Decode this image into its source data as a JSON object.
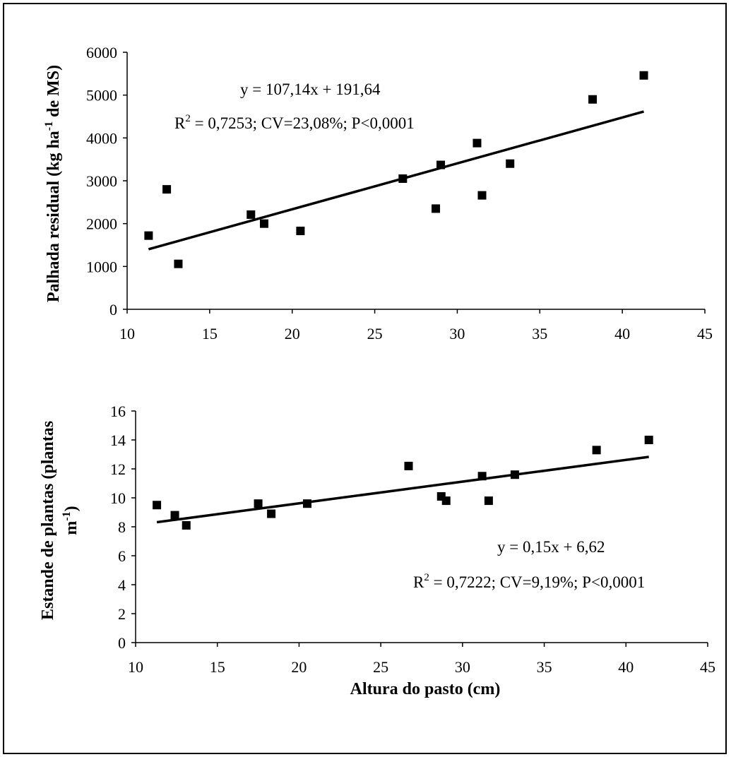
{
  "chart_data": [
    {
      "type": "scatter",
      "ylabel": "Palhada residual (kg ha-1 de MS)",
      "ylabel_parts": {
        "pre": "Palhada residual (kg ha",
        "sup": "-1",
        "post": " de MS)"
      },
      "xlim": [
        10,
        45
      ],
      "ylim": [
        0,
        6000
      ],
      "xticks": [
        "10",
        "15",
        "20",
        "25",
        "30",
        "35",
        "40",
        "45"
      ],
      "yticks": [
        "0",
        "1000",
        "2000",
        "3000",
        "4000",
        "5000",
        "6000"
      ],
      "points": [
        [
          11.3,
          1720
        ],
        [
          12.4,
          2800
        ],
        [
          13.1,
          1060
        ],
        [
          17.5,
          2210
        ],
        [
          18.3,
          2000
        ],
        [
          20.5,
          1830
        ],
        [
          26.7,
          3050
        ],
        [
          28.7,
          2350
        ],
        [
          29.0,
          3370
        ],
        [
          31.2,
          3880
        ],
        [
          31.5,
          2660
        ],
        [
          33.2,
          3400
        ],
        [
          38.2,
          4900
        ],
        [
          41.3,
          5460
        ]
      ],
      "trendline": {
        "slope": 107.14,
        "intercept": 191.64,
        "x_range": [
          11.3,
          41.3
        ]
      },
      "equation": "y = 107,14x + 191,64",
      "stats": {
        "r_label": "R",
        "r_sup": "2",
        "text": " = 0,7253; CV=23,08%; P<0,0001"
      }
    },
    {
      "type": "scatter",
      "ylabel": "Estande de plantas (plantas m-1)",
      "ylabel_parts": {
        "line1": "Estande de plantas (plantas",
        "line2_pre": "m",
        "line2_sup": "-1",
        "line2_post": ")"
      },
      "xlabel": "Altura do pasto (cm)",
      "xlim": [
        10,
        45
      ],
      "ylim": [
        0,
        16
      ],
      "xticks": [
        "10",
        "15",
        "20",
        "25",
        "30",
        "35",
        "40",
        "45"
      ],
      "yticks": [
        "0",
        "2",
        "4",
        "6",
        "8",
        "10",
        "12",
        "14",
        "16"
      ],
      "points": [
        [
          11.3,
          9.5
        ],
        [
          12.4,
          8.8
        ],
        [
          13.1,
          8.1
        ],
        [
          17.5,
          9.6
        ],
        [
          18.3,
          8.9
        ],
        [
          20.5,
          9.6
        ],
        [
          26.7,
          12.2
        ],
        [
          28.7,
          10.1
        ],
        [
          29.0,
          9.8
        ],
        [
          31.2,
          11.5
        ],
        [
          31.6,
          9.8
        ],
        [
          33.2,
          11.6
        ],
        [
          38.2,
          13.3
        ],
        [
          41.4,
          14.0
        ]
      ],
      "trendline": {
        "slope": 0.15,
        "intercept": 6.62,
        "x_range": [
          11.3,
          41.4
        ]
      },
      "equation": "y = 0,15x + 6,62",
      "stats": {
        "r_label": "R",
        "r_sup": "2",
        "text": " = 0,7222; CV=9,19%; P<0,0001"
      }
    }
  ]
}
